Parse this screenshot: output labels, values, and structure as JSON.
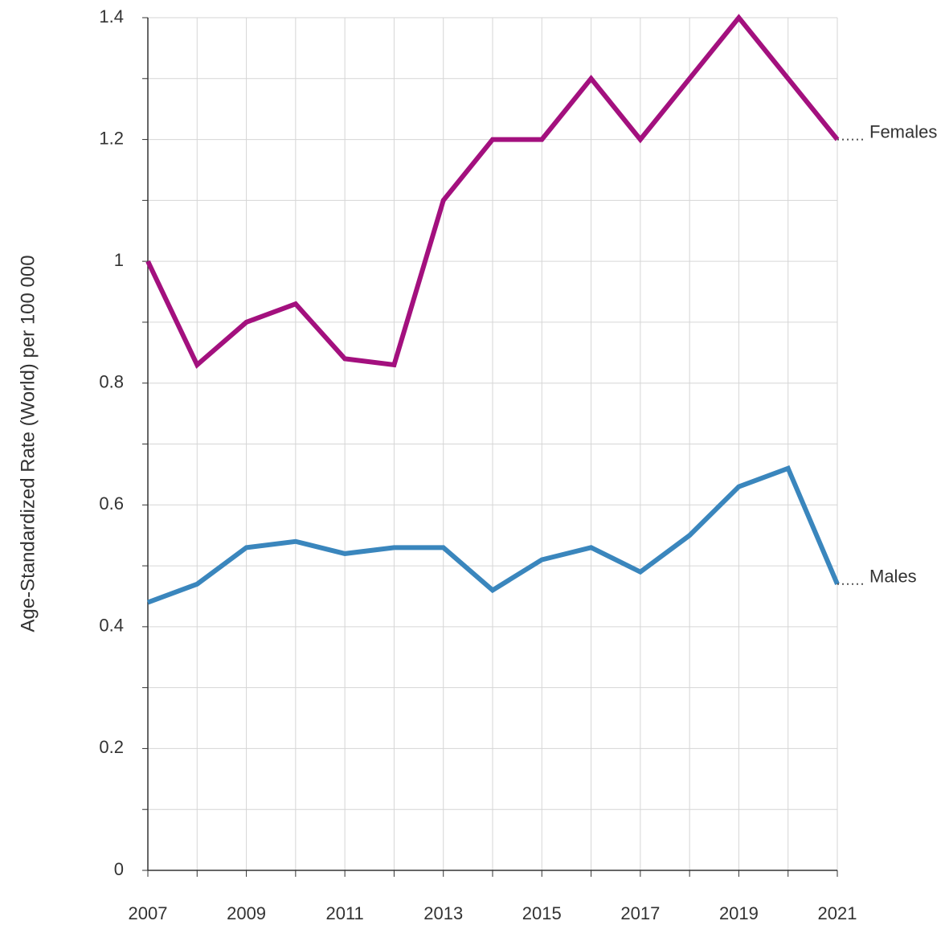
{
  "chart_data": {
    "type": "line",
    "y_label": "Age-Standardized Rate (World) per 100 000",
    "x": [
      2007,
      2008,
      2009,
      2010,
      2011,
      2012,
      2013,
      2014,
      2015,
      2016,
      2017,
      2018,
      2019,
      2020,
      2021
    ],
    "series": [
      {
        "name": "Females",
        "color": "#a3107e",
        "values": [
          1.0,
          0.83,
          0.9,
          0.93,
          0.84,
          0.83,
          1.1,
          1.2,
          1.2,
          1.3,
          1.2,
          1.3,
          1.4,
          1.3,
          1.2
        ]
      },
      {
        "name": "Males",
        "color": "#3a86bd",
        "values": [
          0.44,
          0.47,
          0.53,
          0.54,
          0.52,
          0.53,
          0.53,
          0.46,
          0.51,
          0.53,
          0.49,
          0.55,
          0.63,
          0.66,
          0.47
        ]
      }
    ],
    "xlim": [
      2007,
      2021
    ],
    "xticks": [
      2007,
      2009,
      2011,
      2013,
      2015,
      2017,
      2019,
      2021
    ],
    "x_minor_ticks": [
      2008,
      2010,
      2012,
      2014,
      2016,
      2018,
      2020
    ],
    "ylim": [
      0,
      1.4
    ],
    "yticks": [
      0,
      0.2,
      0.4,
      0.6,
      0.8,
      1,
      1.2,
      1.4
    ],
    "y_minor_ticks": [
      0.1,
      0.3,
      0.5,
      0.7,
      0.9,
      1.1,
      1.3
    ],
    "grid": true
  }
}
